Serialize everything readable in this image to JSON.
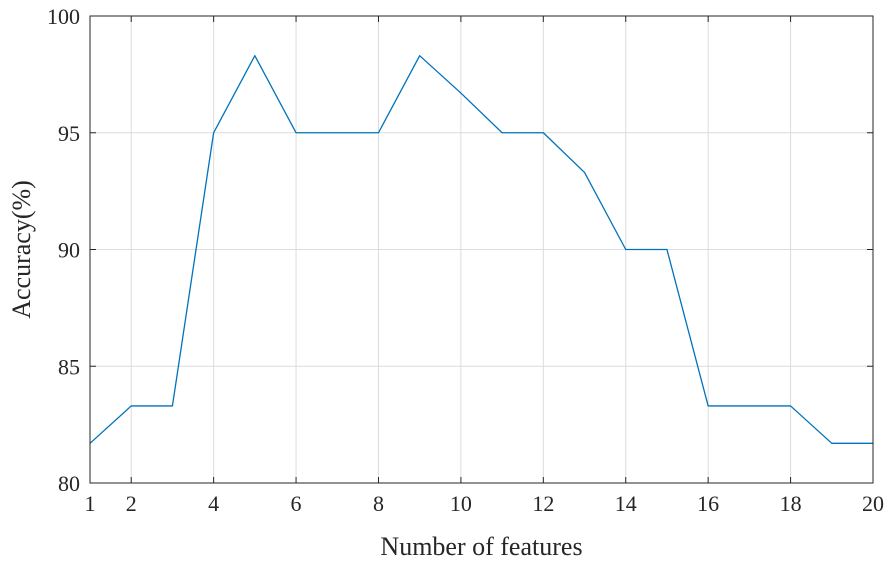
{
  "chart_data": {
    "type": "line",
    "title": "",
    "xlabel": "Number of features",
    "ylabel": "Accuracy(%)",
    "xlim": [
      1,
      20
    ],
    "ylim": [
      80,
      100
    ],
    "xticks": [
      1,
      2,
      4,
      6,
      8,
      10,
      12,
      14,
      16,
      18,
      20
    ],
    "yticks": [
      80,
      85,
      90,
      95,
      100
    ],
    "grid": true,
    "legend": "none",
    "series": [
      {
        "color": "#0072BD",
        "x": [
          1,
          2,
          3,
          4,
          5,
          6,
          7,
          8,
          9,
          10,
          11,
          12,
          13,
          14,
          15,
          16,
          17,
          18,
          19,
          20
        ],
        "y": [
          81.7,
          83.3,
          83.3,
          95.0,
          98.3,
          95.0,
          95.0,
          95.0,
          98.3,
          96.7,
          95.0,
          95.0,
          93.3,
          90.0,
          90.0,
          83.3,
          83.3,
          83.3,
          81.7,
          81.7
        ]
      }
    ]
  }
}
